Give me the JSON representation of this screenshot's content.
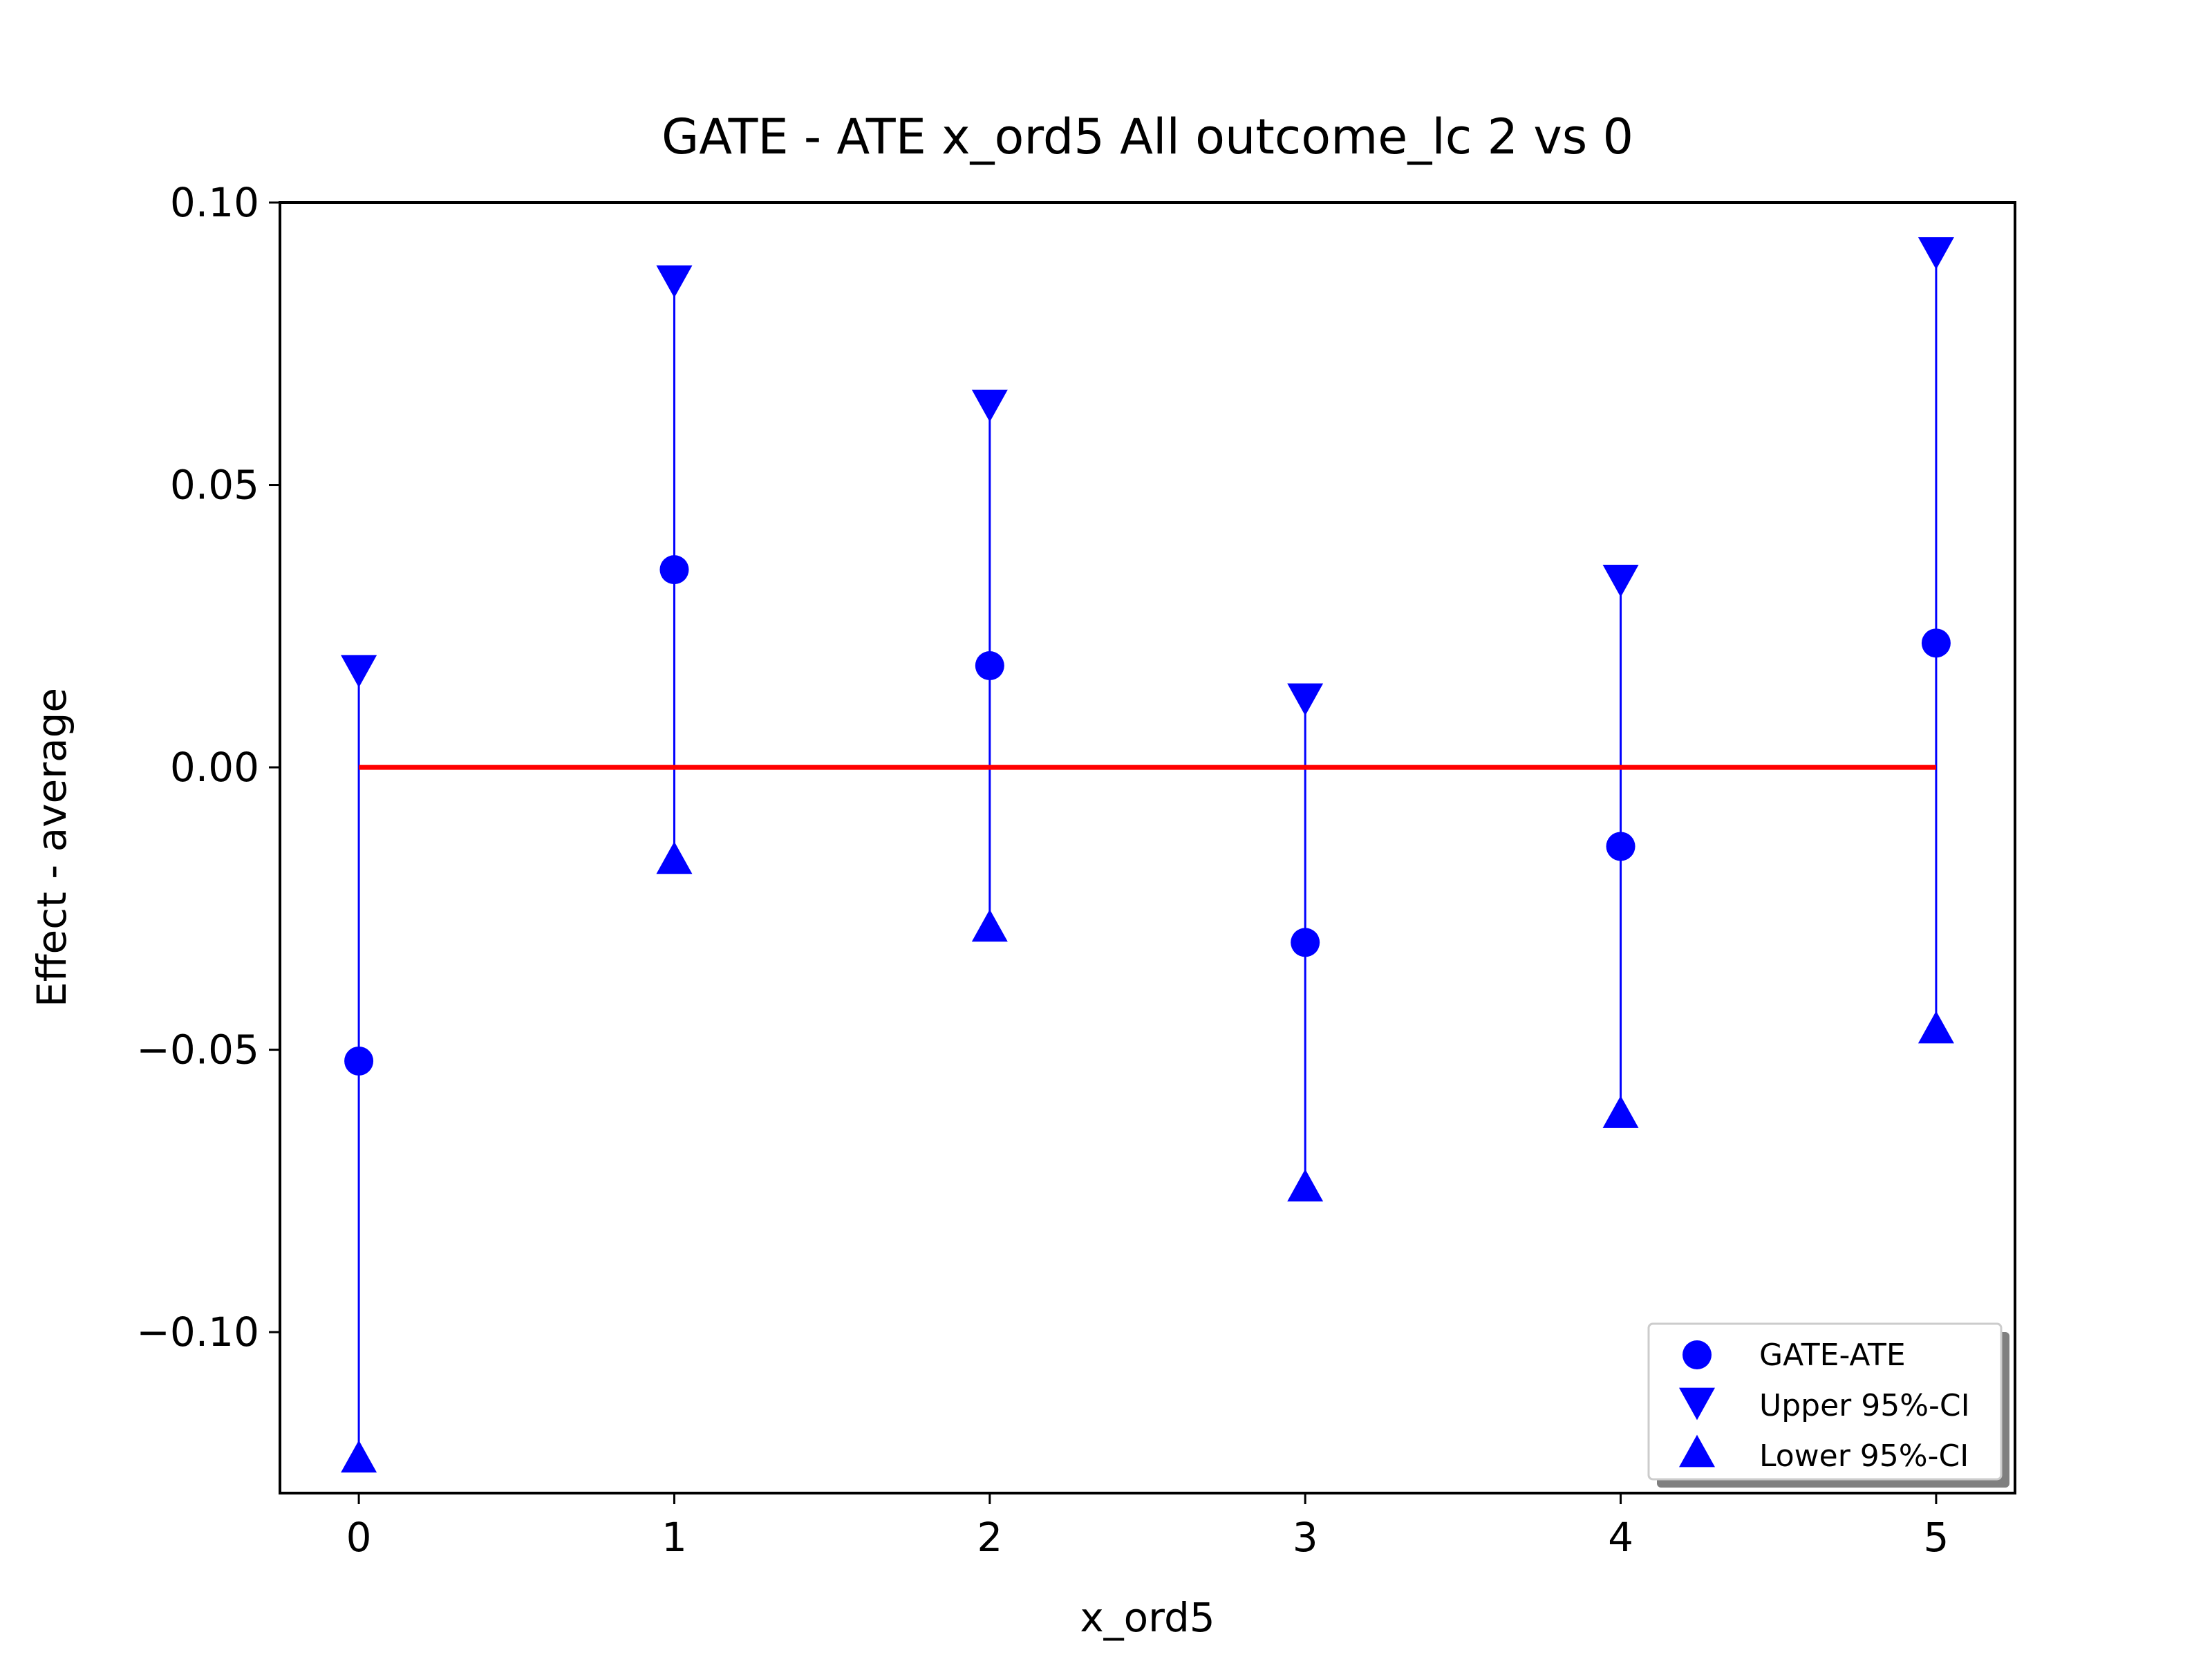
{
  "chart_data": {
    "type": "scatter",
    "title": "GATE - ATE x_ord5 All outcome_lc  2 vs 0",
    "xlabel": "x_ord5",
    "ylabel": "Effect - average",
    "x": [
      0,
      1,
      2,
      3,
      4,
      5
    ],
    "x_ticks": [
      "0",
      "1",
      "2",
      "3",
      "4",
      "5"
    ],
    "y_ticks": [
      {
        "value": 0.1,
        "label": "0.10"
      },
      {
        "value": 0.05,
        "label": "0.05"
      },
      {
        "value": 0.0,
        "label": "0.00"
      },
      {
        "value": -0.05,
        "label": "−0.05"
      },
      {
        "value": -0.1,
        "label": "−0.10"
      }
    ],
    "xlim": [
      -0.25,
      5.25
    ],
    "ylim": [
      -0.1285,
      0.1
    ],
    "grid": false,
    "legend_position": "lower-right",
    "series": [
      {
        "name": "GATE-ATE",
        "marker": "circle",
        "color": "#0000ff",
        "values": [
          -0.052,
          0.035,
          0.018,
          -0.031,
          -0.014,
          0.022
        ]
      },
      {
        "name": "Upper 95%-CI",
        "marker": "triangle-down",
        "color": "#0000ff",
        "values": [
          0.017,
          0.086,
          0.064,
          0.012,
          0.033,
          0.091
        ]
      },
      {
        "name": "Lower 95%-CI",
        "marker": "triangle-up",
        "color": "#0000ff",
        "values": [
          -0.122,
          -0.016,
          -0.028,
          -0.074,
          -0.061,
          -0.046
        ]
      }
    ],
    "reference_line": {
      "y": 0.0,
      "color": "#ff0000"
    },
    "errorbar_color": "#0000ff"
  }
}
